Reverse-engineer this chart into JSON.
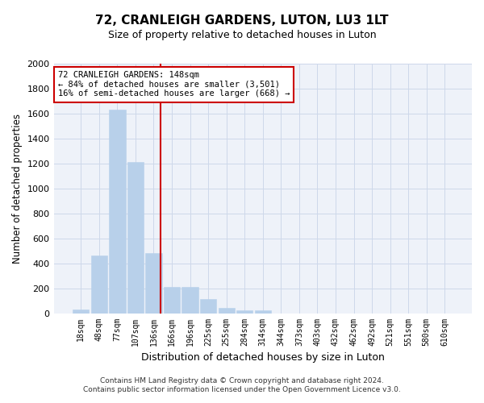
{
  "title": "72, CRANLEIGH GARDENS, LUTON, LU3 1LT",
  "subtitle": "Size of property relative to detached houses in Luton",
  "xlabel": "Distribution of detached houses by size in Luton",
  "ylabel": "Number of detached properties",
  "bar_labels": [
    "18sqm",
    "48sqm",
    "77sqm",
    "107sqm",
    "136sqm",
    "166sqm",
    "196sqm",
    "225sqm",
    "255sqm",
    "284sqm",
    "314sqm",
    "344sqm",
    "373sqm",
    "403sqm",
    "432sqm",
    "462sqm",
    "492sqm",
    "521sqm",
    "551sqm",
    "580sqm",
    "610sqm"
  ],
  "bar_values": [
    30,
    460,
    1630,
    1210,
    480,
    210,
    210,
    115,
    40,
    26,
    20,
    0,
    0,
    0,
    0,
    0,
    0,
    0,
    0,
    0,
    0
  ],
  "bar_color": "#b8d0ea",
  "bar_edgecolor": "#b8d0ea",
  "annotation_line1": "72 CRANLEIGH GARDENS: 148sqm",
  "annotation_line2": "← 84% of detached houses are smaller (3,501)",
  "annotation_line3": "16% of semi-detached houses are larger (668) →",
  "annotation_box_color": "#ffffff",
  "annotation_box_edgecolor": "#cc0000",
  "red_line_sqm": 148,
  "ylim": [
    0,
    2000
  ],
  "yticks": [
    0,
    200,
    400,
    600,
    800,
    1000,
    1200,
    1400,
    1600,
    1800,
    2000
  ],
  "grid_color": "#cdd8ea",
  "footer_line1": "Contains HM Land Registry data © Crown copyright and database right 2024.",
  "footer_line2": "Contains public sector information licensed under the Open Government Licence v3.0.",
  "bg_color": "#eef2f9"
}
